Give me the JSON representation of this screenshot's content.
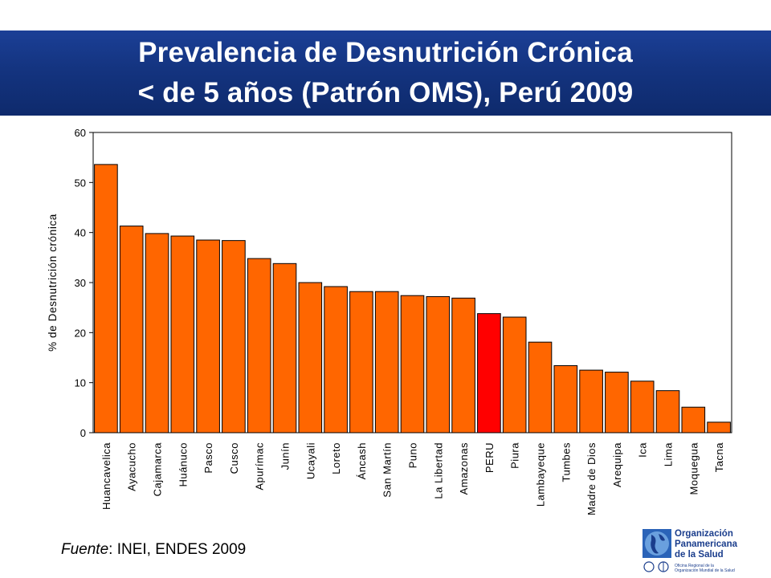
{
  "header": {
    "title_line1": "Prevalencia de Desnutrición Crónica",
    "title_line2": "< de 5 años (Patrón OMS), Perú 2009"
  },
  "source": {
    "label": "Fuente",
    "text": ": INEI, ENDES 2009"
  },
  "logo": {
    "line1": "Organización",
    "line2": "Panamericana",
    "line3": "de la Salud",
    "sub1": "Oficina Regional de la",
    "sub2": "Organización Mundial de la Salud"
  },
  "colors": {
    "header_band": "#143480",
    "bar": "#ff6600",
    "highlight_bar": "#ff0000",
    "logo_text": "#1a3d8c"
  },
  "chart_data": {
    "type": "bar",
    "title": "",
    "xlabel": "",
    "ylabel": "% de Desnutrición crónica",
    "ylim": [
      0,
      60
    ],
    "yticks": [
      0,
      10,
      20,
      30,
      40,
      50,
      60
    ],
    "grid": false,
    "legend": "none",
    "highlight": "PERU",
    "categories": [
      "Huancavelica",
      "Ayacucho",
      "Cajamarca",
      "Huánuco",
      "Pasco",
      "Cusco",
      "Apurímac",
      "Junín",
      "Ucayali",
      "Loreto",
      "Áncash",
      "San Martín",
      "Puno",
      "La Libertad",
      "Amazonas",
      "PERU",
      "Piura",
      "Lambayeque",
      "Tumbes",
      "Madre de Dios",
      "Arequipa",
      "Ica",
      "Lima",
      "Moquegua",
      "Tacna"
    ],
    "values": [
      53.6,
      41.3,
      39.8,
      39.3,
      38.5,
      38.4,
      34.8,
      33.8,
      30.0,
      29.2,
      28.2,
      28.2,
      27.4,
      27.2,
      26.9,
      23.8,
      23.1,
      18.1,
      13.4,
      12.5,
      12.1,
      10.3,
      8.4,
      5.1,
      2.1
    ]
  }
}
